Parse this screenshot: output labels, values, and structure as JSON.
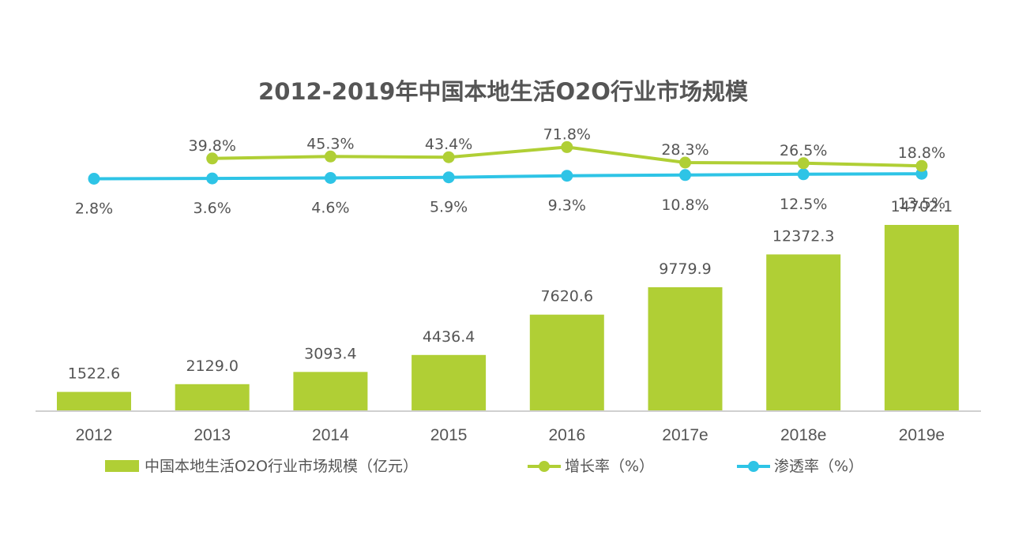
{
  "chart_data": {
    "type": "bar",
    "title": "2012-2019年中国本地生活O2O行业市场规模",
    "categories": [
      "2012",
      "2013",
      "2014",
      "2015",
      "2016",
      "2017e",
      "2018e",
      "2019e"
    ],
    "series": [
      {
        "name": "中国本地生活O2O行业市场规模（亿元）",
        "type": "bar",
        "color": "#b0cf35",
        "values": [
          1522.6,
          2129.0,
          3093.4,
          4436.4,
          7620.6,
          9779.9,
          12372.3,
          14702.1
        ],
        "labels": [
          "1522.6",
          "2129.0",
          "3093.4",
          "4436.4",
          "7620.6",
          "9779.9",
          "12372.3",
          "14702.1"
        ]
      },
      {
        "name": "增长率（%）",
        "type": "line",
        "color": "#b0cf35",
        "values": [
          null,
          39.8,
          45.3,
          43.4,
          71.8,
          28.3,
          26.5,
          18.8
        ],
        "labels": [
          "",
          "39.8%",
          "45.3%",
          "43.4%",
          "71.8%",
          "28.3%",
          "26.5%",
          "18.8%"
        ]
      },
      {
        "name": "渗透率（%）",
        "type": "line",
        "color": "#2ec4e6",
        "values": [
          2.8,
          3.6,
          4.6,
          5.9,
          9.3,
          10.8,
          12.5,
          13.5
        ],
        "labels": [
          "2.8%",
          "3.6%",
          "4.6%",
          "5.9%",
          "9.3%",
          "10.8%",
          "12.5%",
          "13.5%"
        ]
      }
    ],
    "ylim": [
      0,
      16000
    ],
    "grid": false,
    "legend_position": "bottom"
  },
  "colors": {
    "bar": "#b0cf35",
    "growth": "#b0cf35",
    "penetration": "#2ec4e6",
    "text": "#555555",
    "axis": "#d0d0d0"
  }
}
